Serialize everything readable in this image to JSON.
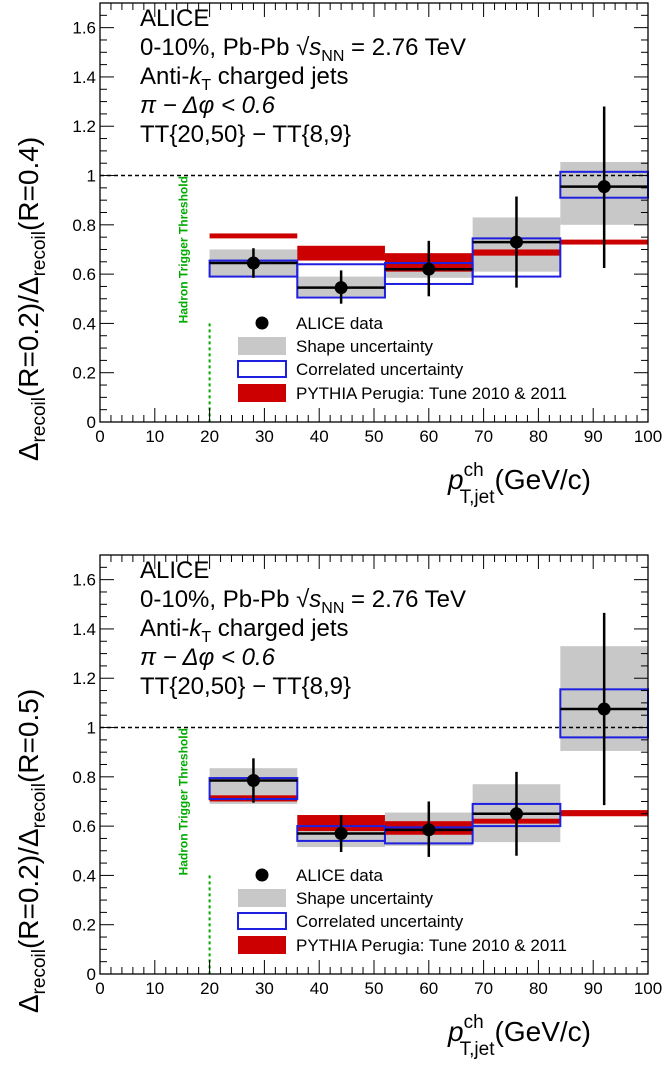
{
  "chart_data": [
    {
      "type": "scatter",
      "panel": "top",
      "ylabel": "Δrecoil(R=0.2)/Δrecoil(R=0.4)",
      "ylabel_parts": {
        "lead": "Δ",
        "sub": "recoil",
        "mid": "(R=0.2)/Δ",
        "sub2": "recoil",
        "tail": "(R=0.4)"
      },
      "xlabel": "pT,jet ch (GeV/c)",
      "xlabel_parts": {
        "p": "p",
        "sup": "ch",
        "sub": "T,jet",
        "tail": "(GeV/c)"
      },
      "xlim": [
        0,
        100
      ],
      "ylim": [
        0,
        1.7
      ],
      "xticks": [
        0,
        10,
        20,
        30,
        40,
        50,
        60,
        70,
        80,
        90,
        100
      ],
      "yticks": [
        0,
        0.2,
        0.4,
        0.6,
        0.8,
        1,
        1.2,
        1.4,
        1.6
      ],
      "ytick_labels": [
        "0",
        "0.2",
        "0.4",
        "0.6",
        "0.8",
        "1",
        "1.2",
        "1.4",
        "1.6"
      ],
      "reference_line": 1,
      "threshold_x": 20,
      "threshold_label": "Hadron Trigger Threshold",
      "annotations": {
        "line1": "ALICE",
        "line2_a": "0-10%, Pb-Pb ",
        "line2_sqrt": "√",
        "line2_s": "s",
        "line2_sub": "NN",
        "line2_b": " = 2.76 TeV",
        "line3_a": "Anti-",
        "line3_k": "k",
        "line3_sub": "T",
        "line3_b": " charged jets",
        "line4": "π − Δφ < 0.6",
        "line5": "TT{20,50} − TT{8,9}"
      },
      "legend": {
        "placement": "bottom-center",
        "entries": [
          "ALICE data",
          "Shape uncertainty",
          "Correlated uncertainty",
          "PYTHIA Perugia: Tune 2010 & 2011"
        ]
      },
      "bins": [
        {
          "x": 28,
          "lo": 20,
          "hi": 36,
          "y": 0.645,
          "stat": [
            0.585,
            0.705
          ],
          "shape": [
            0.59,
            0.7
          ],
          "corr": [
            0.59,
            0.655
          ],
          "pythia": [
            0.745,
            0.765
          ]
        },
        {
          "x": 44,
          "lo": 36,
          "hi": 52,
          "y": 0.545,
          "stat": [
            0.48,
            0.615
          ],
          "shape": [
            0.51,
            0.59
          ],
          "corr": [
            0.505,
            0.64
          ],
          "pythia": [
            0.655,
            0.715
          ]
        },
        {
          "x": 60,
          "lo": 52,
          "hi": 68,
          "y": 0.62,
          "stat": [
            0.51,
            0.735
          ],
          "shape": [
            0.585,
            0.66
          ],
          "corr": [
            0.56,
            0.645
          ],
          "pythia": [
            0.61,
            0.685
          ]
        },
        {
          "x": 76,
          "lo": 68,
          "hi": 84,
          "y": 0.73,
          "stat": [
            0.545,
            0.915
          ],
          "shape": [
            0.61,
            0.83
          ],
          "corr": [
            0.59,
            0.745
          ],
          "pythia": [
            0.675,
            0.7
          ]
        },
        {
          "x": 92,
          "lo": 84,
          "hi": 100,
          "y": 0.955,
          "stat": [
            0.625,
            1.28
          ],
          "shape": [
            0.8,
            1.055
          ],
          "corr": [
            0.91,
            1.015
          ],
          "pythia": [
            0.72,
            0.74
          ]
        }
      ],
      "colors": {
        "data": "#000000",
        "shape": "#c8c8c8",
        "corr": "#1f1fe0",
        "pythia": "#cc0000",
        "threshold": "#00aa00"
      }
    },
    {
      "type": "scatter",
      "panel": "bottom",
      "ylabel": "Δrecoil(R=0.2)/Δrecoil(R=0.5)",
      "ylabel_parts": {
        "lead": "Δ",
        "sub": "recoil",
        "mid": "(R=0.2)/Δ",
        "sub2": "recoil",
        "tail": "(R=0.5)"
      },
      "xlabel": "pT,jet ch (GeV/c)",
      "xlabel_parts": {
        "p": "p",
        "sup": "ch",
        "sub": "T,jet",
        "tail": "(GeV/c)"
      },
      "xlim": [
        0,
        100
      ],
      "ylim": [
        0,
        1.7
      ],
      "xticks": [
        0,
        10,
        20,
        30,
        40,
        50,
        60,
        70,
        80,
        90,
        100
      ],
      "yticks": [
        0,
        0.2,
        0.4,
        0.6,
        0.8,
        1,
        1.2,
        1.4,
        1.6
      ],
      "ytick_labels": [
        "0",
        "0.2",
        "0.4",
        "0.6",
        "0.8",
        "1",
        "1.2",
        "1.4",
        "1.6"
      ],
      "reference_line": 1,
      "threshold_x": 20,
      "threshold_label": "Hadron Trigger Threshold",
      "annotations": {
        "line1": "ALICE",
        "line2_a": "0-10%, Pb-Pb ",
        "line2_sqrt": "√",
        "line2_s": "s",
        "line2_sub": "NN",
        "line2_b": " = 2.76 TeV",
        "line3_a": "Anti-",
        "line3_k": "k",
        "line3_sub": "T",
        "line3_b": " charged jets",
        "line4": "π − Δφ < 0.6",
        "line5": "TT{20,50} − TT{8,9}"
      },
      "legend": {
        "placement": "bottom-center",
        "entries": [
          "ALICE data",
          "Shape uncertainty",
          "Correlated uncertainty",
          "PYTHIA Perugia: Tune 2010 & 2011"
        ]
      },
      "bins": [
        {
          "x": 28,
          "lo": 20,
          "hi": 36,
          "y": 0.785,
          "stat": [
            0.695,
            0.875
          ],
          "shape": [
            0.69,
            0.835
          ],
          "corr": [
            0.71,
            0.795
          ],
          "pythia": [
            0.7,
            0.725
          ]
        },
        {
          "x": 44,
          "lo": 36,
          "hi": 52,
          "y": 0.57,
          "stat": [
            0.495,
            0.645
          ],
          "shape": [
            0.515,
            0.6
          ],
          "corr": [
            0.54,
            0.6
          ],
          "pythia": [
            0.58,
            0.645
          ]
        },
        {
          "x": 60,
          "lo": 52,
          "hi": 68,
          "y": 0.585,
          "stat": [
            0.475,
            0.7
          ],
          "shape": [
            0.52,
            0.655
          ],
          "corr": [
            0.53,
            0.595
          ],
          "pythia": [
            0.565,
            0.62
          ]
        },
        {
          "x": 76,
          "lo": 68,
          "hi": 84,
          "y": 0.65,
          "stat": [
            0.48,
            0.82
          ],
          "shape": [
            0.535,
            0.77
          ],
          "corr": [
            0.6,
            0.69
          ],
          "pythia": [
            0.61,
            0.63
          ]
        },
        {
          "x": 92,
          "lo": 84,
          "hi": 100,
          "y": 1.075,
          "stat": [
            0.685,
            1.465
          ],
          "shape": [
            0.905,
            1.33
          ],
          "corr": [
            0.96,
            1.155
          ],
          "pythia": [
            0.64,
            0.665
          ]
        }
      ],
      "colors": {
        "data": "#000000",
        "shape": "#c8c8c8",
        "corr": "#1f1fe0",
        "pythia": "#cc0000",
        "threshold": "#00aa00"
      }
    }
  ]
}
